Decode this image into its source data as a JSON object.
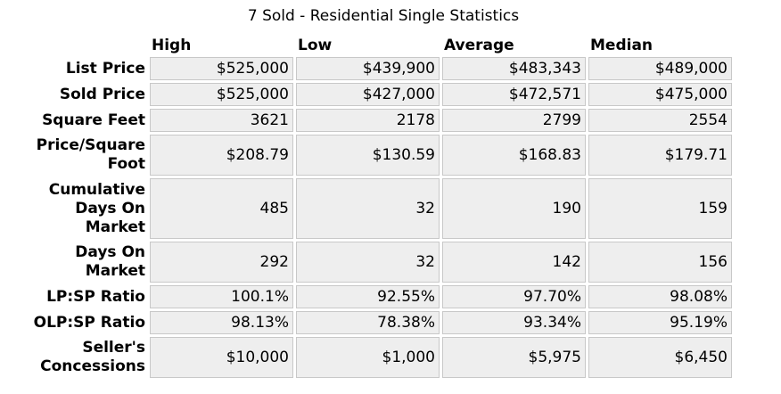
{
  "title": "7 Sold - Residential Single Statistics",
  "columns": [
    "High",
    "Low",
    "Average",
    "Median"
  ],
  "rows": [
    {
      "label": "List Price",
      "values": [
        "$525,000",
        "$439,900",
        "$483,343",
        "$489,000"
      ]
    },
    {
      "label": "Sold Price",
      "values": [
        "$525,000",
        "$427,000",
        "$472,571",
        "$475,000"
      ]
    },
    {
      "label": "Square Feet",
      "values": [
        "3621",
        "2178",
        "2799",
        "2554"
      ]
    },
    {
      "label": "Price/Square Foot",
      "values": [
        "$208.79",
        "$130.59",
        "$168.83",
        "$179.71"
      ]
    },
    {
      "label": "Cumulative Days On Market",
      "values": [
        "485",
        "32",
        "190",
        "159"
      ]
    },
    {
      "label": "Days On Market",
      "values": [
        "292",
        "32",
        "142",
        "156"
      ]
    },
    {
      "label": "LP:SP Ratio",
      "values": [
        "100.1%",
        "92.55%",
        "97.70%",
        "98.08%"
      ]
    },
    {
      "label": "OLP:SP Ratio",
      "values": [
        "98.13%",
        "78.38%",
        "93.34%",
        "95.19%"
      ]
    },
    {
      "label": "Seller's Concessions",
      "values": [
        "$10,000",
        "$1,000",
        "$5,975",
        "$6,450"
      ]
    }
  ],
  "colors": {
    "cell_background": "#eeeeee",
    "cell_border": "#c8c8c8"
  }
}
